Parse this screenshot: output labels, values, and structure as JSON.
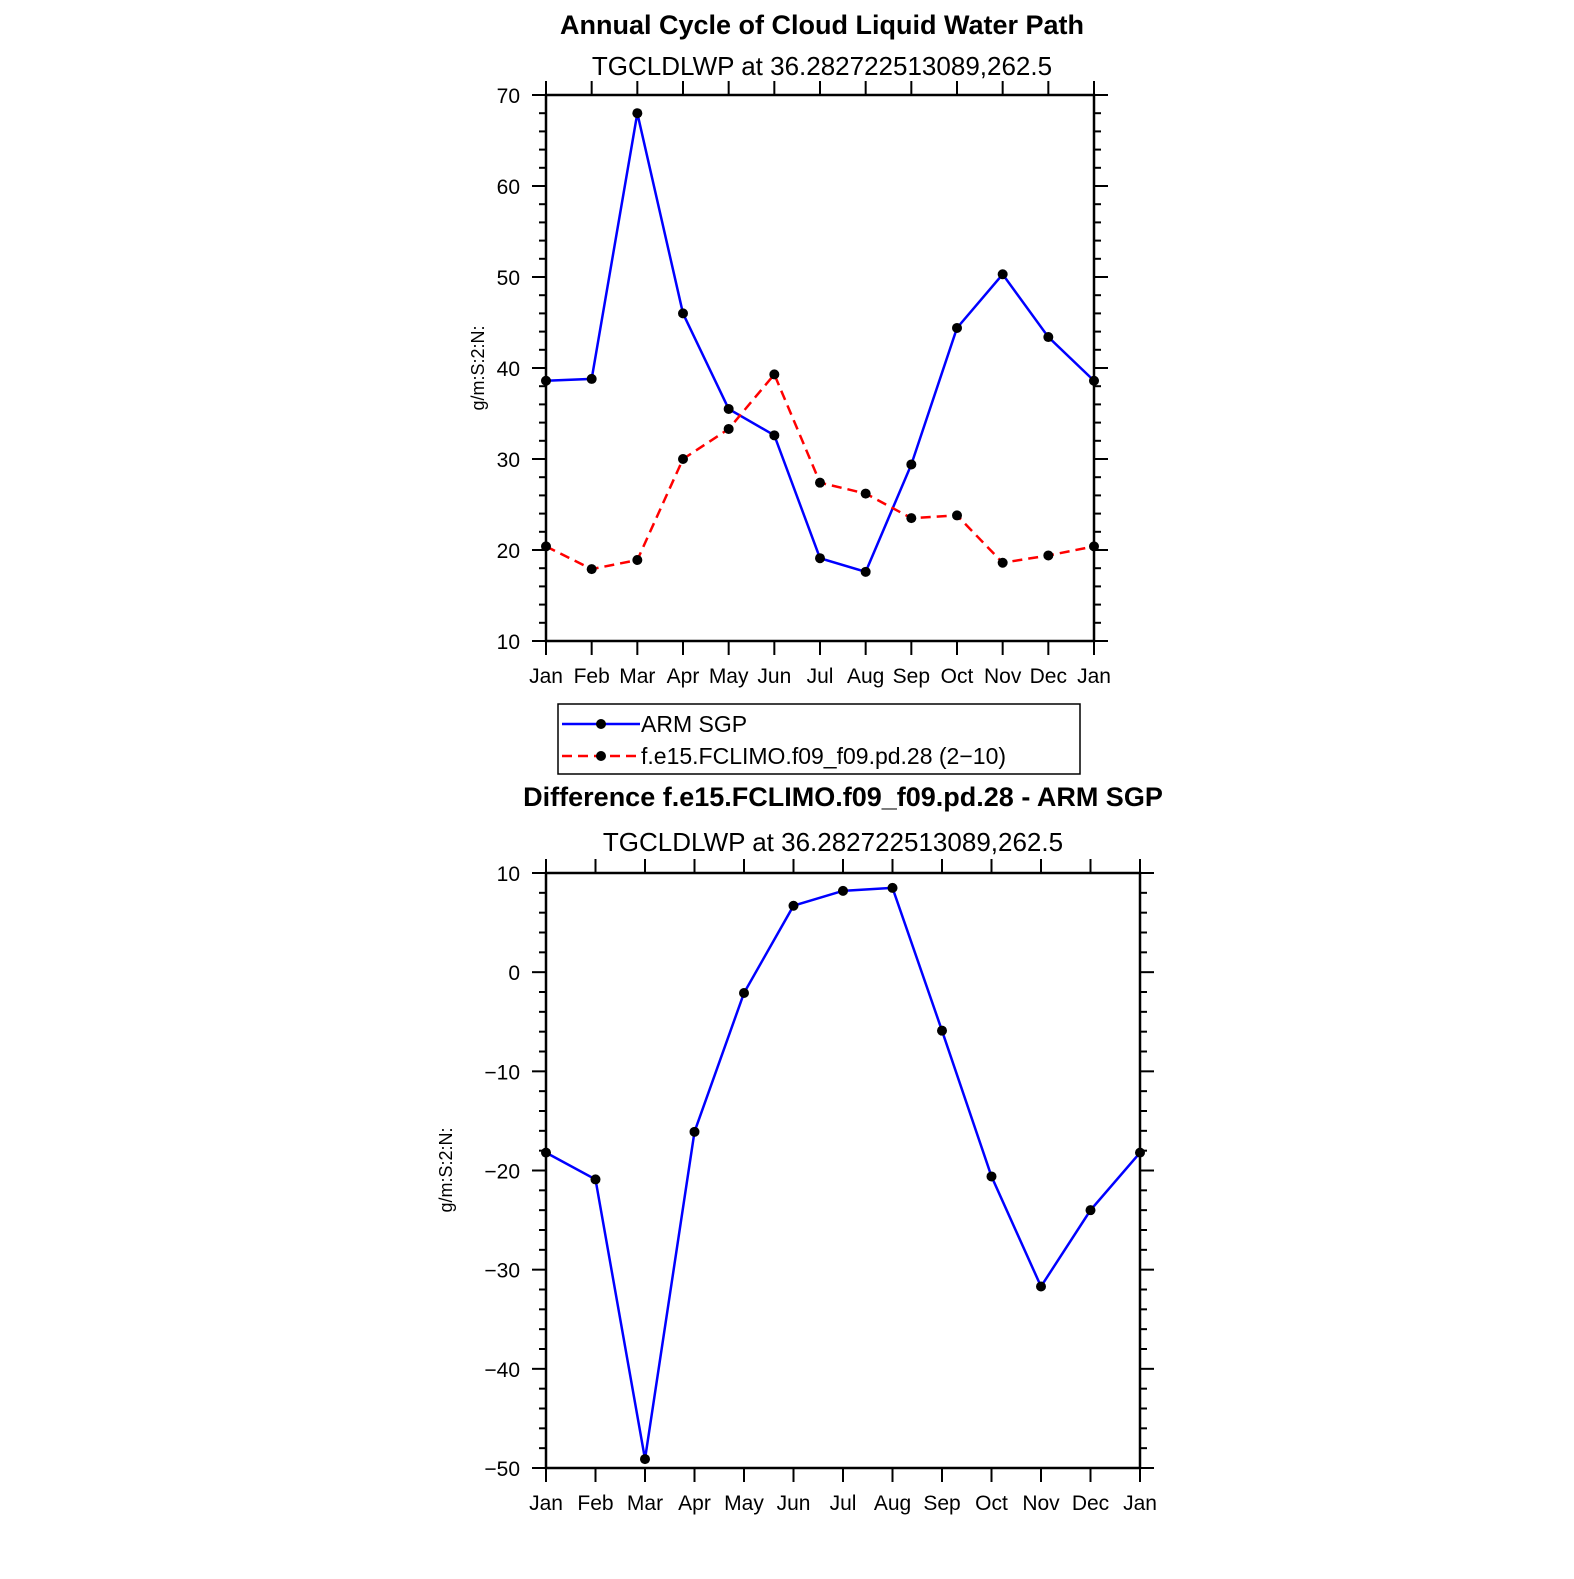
{
  "colors": {
    "series1": "#0000ff",
    "series2": "#ff0000",
    "marker": "#000000"
  },
  "chart_data": [
    {
      "type": "line",
      "title": "Annual Cycle of Cloud Liquid Water Path",
      "subtitle": "TGCLDLWP at 36.282722513089,262.5",
      "ylabel": "g/m:S:2:N:",
      "ylim": [
        10,
        70
      ],
      "yticks": [
        "10",
        "20",
        "30",
        "40",
        "50",
        "60",
        "70"
      ],
      "categories": [
        "Jan",
        "Feb",
        "Mar",
        "Apr",
        "May",
        "Jun",
        "Jul",
        "Aug",
        "Sep",
        "Oct",
        "Nov",
        "Dec",
        "Jan"
      ],
      "series": [
        {
          "name": "ARM SGP",
          "style": "solid",
          "values": [
            38.6,
            38.8,
            68.0,
            46.0,
            35.5,
            32.6,
            19.1,
            17.6,
            29.4,
            44.4,
            50.3,
            43.4,
            38.6
          ]
        },
        {
          "name": "f.e15.FCLIMO.f09_f09.pd.28 (2−10)",
          "style": "dashed",
          "values": [
            20.4,
            17.9,
            18.9,
            30.0,
            33.3,
            39.3,
            27.4,
            26.2,
            23.5,
            23.8,
            18.6,
            19.4,
            20.4
          ]
        }
      ],
      "legend_position": "below"
    },
    {
      "type": "line",
      "title": "Difference f.e15.FCLIMO.f09_f09.pd.28 - ARM SGP",
      "subtitle": "TGCLDLWP at 36.282722513089,262.5",
      "ylabel": "g/m:S:2:N:",
      "ylim": [
        -50,
        10
      ],
      "yticks": [
        "−50",
        "−40",
        "−30",
        "−20",
        "−10",
        "0",
        "10"
      ],
      "categories": [
        "Jan",
        "Feb",
        "Mar",
        "Apr",
        "May",
        "Jun",
        "Jul",
        "Aug",
        "Sep",
        "Oct",
        "Nov",
        "Dec",
        "Jan"
      ],
      "series": [
        {
          "name": "Difference",
          "style": "solid",
          "values": [
            -18.2,
            -20.9,
            -49.1,
            -16.1,
            -2.1,
            6.7,
            8.2,
            8.5,
            -5.9,
            -20.6,
            -31.7,
            -24.0,
            -18.2
          ]
        }
      ]
    }
  ]
}
